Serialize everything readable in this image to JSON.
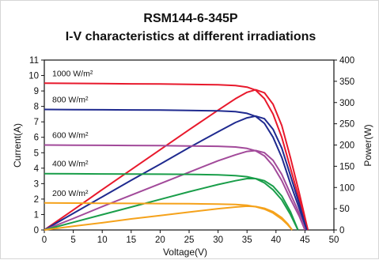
{
  "chart_data": {
    "type": "line",
    "title": "RSM144-6-345P",
    "subtitle": "I-V characteristics at different irradiations",
    "xlabel": "Voltage(V)",
    "ylabel_left": "Current(A)",
    "ylabel_right": "Power(W)",
    "xlim": [
      0,
      50
    ],
    "ylim_left": [
      0,
      11
    ],
    "ylim_right": [
      0,
      400
    ],
    "x_ticks": [
      0,
      5,
      10,
      15,
      20,
      25,
      30,
      35,
      40,
      45,
      50
    ],
    "y_left_ticks": [
      0,
      1,
      2,
      3,
      4,
      5,
      6,
      7,
      8,
      9,
      10,
      11
    ],
    "y_right_ticks": [
      0,
      50,
      100,
      150,
      200,
      250,
      300,
      350,
      400
    ],
    "grid": false,
    "series": [
      {
        "name": "1000 W/m²",
        "color": "#e8192c",
        "label": "1000 W/m²",
        "iv": [
          [
            0,
            9.5
          ],
          [
            5,
            9.49
          ],
          [
            10,
            9.48
          ],
          [
            15,
            9.46
          ],
          [
            20,
            9.45
          ],
          [
            25,
            9.43
          ],
          [
            30,
            9.4
          ],
          [
            33,
            9.35
          ],
          [
            35,
            9.25
          ],
          [
            36.5,
            9.05
          ],
          [
            38,
            8.5
          ],
          [
            39.5,
            7.5
          ],
          [
            41,
            6.0
          ],
          [
            42.5,
            4.0
          ],
          [
            44,
            2.0
          ],
          [
            45.5,
            0
          ]
        ],
        "power": [
          [
            0,
            0
          ],
          [
            5,
            47
          ],
          [
            10,
            95
          ],
          [
            15,
            142
          ],
          [
            20,
            189
          ],
          [
            25,
            236
          ],
          [
            30,
            282
          ],
          [
            33,
            309
          ],
          [
            35,
            324
          ],
          [
            36.5,
            330
          ],
          [
            38,
            323
          ],
          [
            39.5,
            296
          ],
          [
            41,
            246
          ],
          [
            42.5,
            170
          ],
          [
            44,
            88
          ],
          [
            45.5,
            0
          ]
        ]
      },
      {
        "name": "800 W/m²",
        "color": "#1f2a8f",
        "label": "800 W/m²",
        "iv": [
          [
            0,
            7.8
          ],
          [
            5,
            7.79
          ],
          [
            10,
            7.78
          ],
          [
            15,
            7.77
          ],
          [
            20,
            7.76
          ],
          [
            25,
            7.74
          ],
          [
            30,
            7.71
          ],
          [
            33,
            7.66
          ],
          [
            35,
            7.55
          ],
          [
            36.5,
            7.35
          ],
          [
            38,
            6.9
          ],
          [
            39.5,
            6.0
          ],
          [
            41,
            4.7
          ],
          [
            42.5,
            3.0
          ],
          [
            44,
            1.4
          ],
          [
            45.3,
            0
          ]
        ],
        "power": [
          [
            0,
            0
          ],
          [
            5,
            39
          ],
          [
            10,
            78
          ],
          [
            15,
            117
          ],
          [
            20,
            155
          ],
          [
            25,
            194
          ],
          [
            30,
            231
          ],
          [
            33,
            253
          ],
          [
            35,
            264
          ],
          [
            36.5,
            268
          ],
          [
            38,
            262
          ],
          [
            39.5,
            237
          ],
          [
            41,
            193
          ],
          [
            42.5,
            128
          ],
          [
            44,
            62
          ],
          [
            45.3,
            0
          ]
        ]
      },
      {
        "name": "600 W/m²",
        "color": "#a24a9a",
        "label": "600 W/m²",
        "iv": [
          [
            0,
            5.5
          ],
          [
            5,
            5.49
          ],
          [
            10,
            5.48
          ],
          [
            15,
            5.47
          ],
          [
            20,
            5.46
          ],
          [
            25,
            5.44
          ],
          [
            30,
            5.42
          ],
          [
            33,
            5.37
          ],
          [
            35,
            5.28
          ],
          [
            36.5,
            5.12
          ],
          [
            38,
            4.8
          ],
          [
            39.5,
            4.15
          ],
          [
            41,
            3.2
          ],
          [
            42.5,
            2.0
          ],
          [
            44,
            0.9
          ],
          [
            45,
            0
          ]
        ],
        "power": [
          [
            0,
            0
          ],
          [
            5,
            27
          ],
          [
            10,
            55
          ],
          [
            15,
            82
          ],
          [
            20,
            109
          ],
          [
            25,
            136
          ],
          [
            30,
            163
          ],
          [
            33,
            177
          ],
          [
            35,
            185
          ],
          [
            36.5,
            187
          ],
          [
            38,
            182
          ],
          [
            39.5,
            164
          ],
          [
            41,
            131
          ],
          [
            42.5,
            85
          ],
          [
            44,
            40
          ],
          [
            45,
            0
          ]
        ]
      },
      {
        "name": "400 W/m²",
        "color": "#1a9e4a",
        "label": "400 W/m²",
        "iv": [
          [
            0,
            3.65
          ],
          [
            5,
            3.64
          ],
          [
            10,
            3.63
          ],
          [
            15,
            3.62
          ],
          [
            20,
            3.61
          ],
          [
            25,
            3.6
          ],
          [
            30,
            3.57
          ],
          [
            33,
            3.52
          ],
          [
            35,
            3.45
          ],
          [
            36.5,
            3.32
          ],
          [
            38,
            3.05
          ],
          [
            39.5,
            2.6
          ],
          [
            41,
            1.95
          ],
          [
            42.5,
            1.0
          ],
          [
            43.8,
            0
          ]
        ],
        "power": [
          [
            0,
            0
          ],
          [
            5,
            18
          ],
          [
            10,
            36
          ],
          [
            15,
            54
          ],
          [
            20,
            72
          ],
          [
            25,
            90
          ],
          [
            30,
            107
          ],
          [
            33,
            116
          ],
          [
            35,
            121
          ],
          [
            36.5,
            121
          ],
          [
            38,
            116
          ],
          [
            39.5,
            103
          ],
          [
            41,
            80
          ],
          [
            42.5,
            43
          ],
          [
            43.8,
            0
          ]
        ]
      },
      {
        "name": "200 W/m²",
        "color": "#f5a21b",
        "label": "200 W/m²",
        "iv": [
          [
            0,
            1.75
          ],
          [
            5,
            1.74
          ],
          [
            10,
            1.73
          ],
          [
            15,
            1.72
          ],
          [
            20,
            1.71
          ],
          [
            25,
            1.7
          ],
          [
            30,
            1.68
          ],
          [
            33,
            1.65
          ],
          [
            35,
            1.6
          ],
          [
            36.5,
            1.5
          ],
          [
            38,
            1.35
          ],
          [
            39.5,
            1.1
          ],
          [
            41,
            0.7
          ],
          [
            42,
            0.35
          ],
          [
            42.8,
            0
          ]
        ],
        "power": [
          [
            0,
            0
          ],
          [
            5,
            8.7
          ],
          [
            10,
            17
          ],
          [
            15,
            26
          ],
          [
            20,
            34
          ],
          [
            25,
            42
          ],
          [
            30,
            50
          ],
          [
            33,
            54
          ],
          [
            35,
            56
          ],
          [
            36.5,
            55
          ],
          [
            38,
            51
          ],
          [
            39.5,
            43
          ],
          [
            41,
            29
          ],
          [
            42,
            15
          ],
          [
            42.8,
            0
          ]
        ]
      }
    ]
  }
}
